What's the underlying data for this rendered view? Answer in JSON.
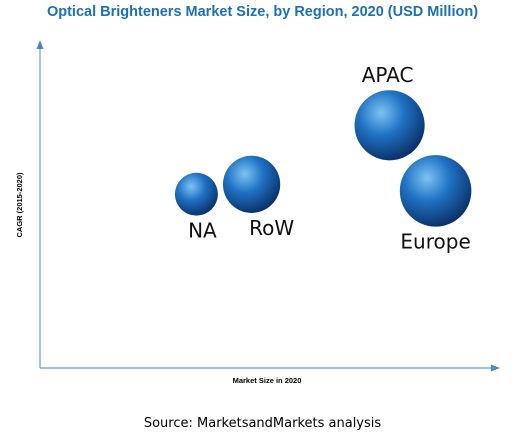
{
  "chart_data": {
    "type": "bubble",
    "title": "Optical Brighteners Market Size, by Region, 2020 (USD Million)",
    "xlabel": "Market Size in 2020",
    "ylabel": "CAGR (2015-2020)",
    "grid": false,
    "legend": "none",
    "axis_ticks": "none",
    "points": [
      {
        "label": "NA",
        "x": 1.7,
        "y": 5.3,
        "size": 0.45
      },
      {
        "label": "RoW",
        "x": 2.3,
        "y": 5.6,
        "size": 0.8
      },
      {
        "label": "APAC",
        "x": 3.8,
        "y": 7.4,
        "size": 1.2
      },
      {
        "label": "Europe",
        "x": 4.3,
        "y": 5.4,
        "size": 1.25
      }
    ],
    "xlim": [
      0,
      5
    ],
    "ylim": [
      0,
      10
    ]
  },
  "source": "Source: MarketsandMarkets analysis",
  "colors": {
    "title": "#1F6FB5",
    "axis": "#4A86C8",
    "bubble_light": "#7EC3F2",
    "bubble_mid": "#1F72C4",
    "bubble_dark": "#0A2E63"
  }
}
